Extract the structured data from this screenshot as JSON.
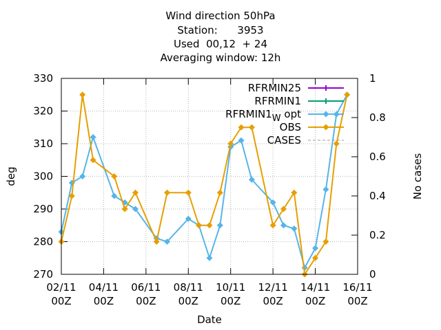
{
  "chart_data": {
    "type": "line",
    "title": [
      "Wind direction 50hPa",
      "Station:      3953",
      "Used  00,12  + 24",
      "Averaging window: 12h"
    ],
    "xlabel": "Date",
    "ylabel": "deg",
    "y2label": "No cases",
    "ylim": [
      270,
      330
    ],
    "y2lim": [
      0,
      1
    ],
    "yticks": [
      "270",
      "280",
      "290",
      "300",
      "310",
      "320",
      "330"
    ],
    "y2ticks": [
      "0",
      "0.2",
      "0.4",
      "0.6",
      "0.8",
      "1"
    ],
    "xticks": [
      {
        "x": 0,
        "l1": "02/11",
        "l2": "00Z"
      },
      {
        "x": 2,
        "l1": "04/11",
        "l2": "00Z"
      },
      {
        "x": 4,
        "l1": "06/11",
        "l2": "00Z"
      },
      {
        "x": 6,
        "l1": "08/11",
        "l2": "00Z"
      },
      {
        "x": 8,
        "l1": "10/11",
        "l2": "00Z"
      },
      {
        "x": 10,
        "l1": "12/11",
        "l2": "00Z"
      },
      {
        "x": 12,
        "l1": "14/11",
        "l2": "00Z"
      },
      {
        "x": 14,
        "l1": "16/11",
        "l2": "00Z"
      }
    ],
    "xlim": [
      0,
      14
    ],
    "grid": true,
    "legend_position": "top-right",
    "series": [
      {
        "name": "RFRMIN25",
        "color": "#9400d3",
        "marker": "plus",
        "values": []
      },
      {
        "name": "RFRMIN1",
        "color": "#009e73",
        "marker": "plus",
        "values": []
      },
      {
        "name": "RFRMIN1_W opt",
        "color": "#56b4e9",
        "marker": "diamond",
        "x": [
          0,
          0.5,
          1,
          1.5,
          2.5,
          3,
          3.5,
          4.5,
          5,
          6,
          6.5,
          7,
          7.5,
          8,
          8.5,
          9,
          10,
          10.5,
          11,
          11.5,
          12,
          12.5,
          13,
          13.5
        ],
        "values": [
          283,
          298,
          300,
          312,
          294,
          292,
          290,
          281,
          280,
          287,
          285,
          275,
          285,
          309,
          311,
          299,
          292,
          285,
          284,
          272,
          278,
          296,
          319,
          325
        ]
      },
      {
        "name": "OBS",
        "color": "#e69f00",
        "marker": "diamond",
        "x": [
          0,
          0.5,
          1,
          1.5,
          2.5,
          3,
          3.5,
          4.5,
          5,
          6,
          6.5,
          7,
          7.5,
          8,
          8.5,
          9,
          10,
          10.5,
          11,
          11.5,
          12,
          12.5,
          13,
          13.5
        ],
        "values": [
          280,
          294,
          325,
          305,
          300,
          290,
          295,
          280,
          295,
          295,
          285,
          285,
          295,
          310,
          315,
          315,
          285,
          290,
          295,
          270,
          275,
          280,
          310,
          325
        ]
      },
      {
        "name": "CASES",
        "color": "#999999",
        "dashed": true,
        "values": []
      }
    ]
  }
}
